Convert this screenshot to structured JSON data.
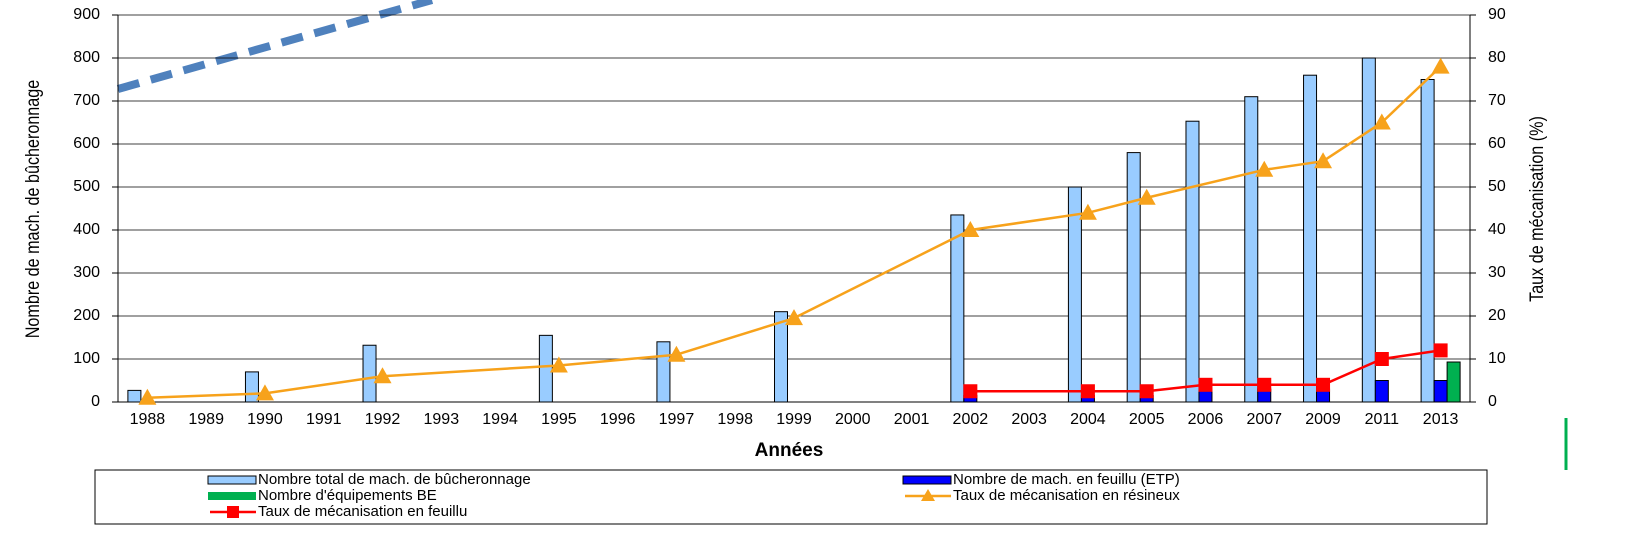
{
  "chart_data": {
    "type": "bar",
    "x_label": "Années",
    "y_label": "Nombre de mach. de bûcheronnage",
    "y2_label": "Taux de mécanisation (%)",
    "categories": [
      "1988",
      "1989",
      "1990",
      "1991",
      "1992",
      "1993",
      "1994",
      "1995",
      "1996",
      "1997",
      "1998",
      "1999",
      "2000",
      "2001",
      "2002",
      "2003",
      "2004",
      "2005",
      "2006",
      "2007",
      "2009",
      "2011",
      "2013"
    ],
    "ylim": [
      0,
      900
    ],
    "yticks": [
      0,
      100,
      200,
      300,
      400,
      500,
      600,
      700,
      800,
      900
    ],
    "y2lim": [
      0,
      90
    ],
    "y2ticks": [
      0,
      10,
      20,
      30,
      40,
      50,
      60,
      70,
      80,
      90
    ],
    "grid": true,
    "legend": "bottom",
    "series": [
      {
        "name": "Nombre total de mach. de bûcheronnage",
        "type": "bar",
        "color": "#99ccff",
        "values": [
          27,
          null,
          70,
          null,
          132,
          null,
          null,
          155,
          null,
          140,
          null,
          210,
          null,
          null,
          435,
          null,
          500,
          580,
          653,
          710,
          760,
          800,
          750
        ]
      },
      {
        "name": "Nombre de mach. en feuillu (ETP)",
        "type": "bar",
        "color": "#0000ff",
        "values": [
          null,
          null,
          null,
          null,
          null,
          null,
          null,
          null,
          null,
          null,
          null,
          null,
          null,
          null,
          15,
          null,
          15,
          15,
          30,
          30,
          30,
          50,
          50
        ]
      },
      {
        "name": "Nombre d'équipements BE",
        "type": "bar",
        "color": "#00b050",
        "values": [
          null,
          null,
          null,
          null,
          null,
          null,
          null,
          null,
          null,
          null,
          null,
          null,
          null,
          null,
          null,
          null,
          null,
          null,
          null,
          null,
          null,
          null,
          93
        ]
      },
      {
        "name": "Taux de mécanisation en résineux",
        "type": "line",
        "axis": "y2",
        "marker": "triangle",
        "color": "#f7a21b",
        "values": [
          1,
          null,
          2,
          null,
          6,
          null,
          null,
          8.5,
          null,
          11,
          null,
          19.5,
          null,
          null,
          40,
          null,
          44,
          47.5,
          null,
          54,
          56,
          65,
          78
        ]
      },
      {
        "name": "Taux de mécanisation en feuillu",
        "type": "line",
        "axis": "y2",
        "marker": "square",
        "color": "#ff0000",
        "values": [
          null,
          null,
          null,
          null,
          null,
          null,
          null,
          null,
          null,
          null,
          null,
          null,
          null,
          null,
          2.5,
          null,
          2.5,
          2.5,
          4,
          4,
          4,
          10,
          12
        ]
      }
    ]
  }
}
